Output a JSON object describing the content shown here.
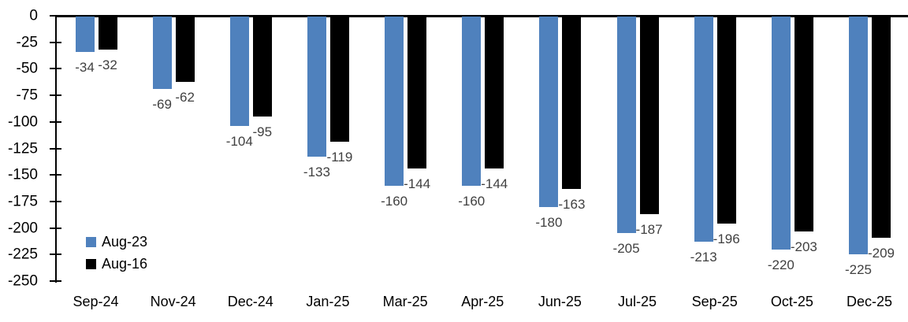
{
  "chart_data": {
    "type": "bar",
    "title": "",
    "xlabel": "",
    "ylabel": "",
    "categories": [
      "Sep-24",
      "Nov-24",
      "Dec-24",
      "Jan-25",
      "Mar-25",
      "Apr-25",
      "Jun-25",
      "Jul-25",
      "Sep-25",
      "Oct-25",
      "Dec-25"
    ],
    "series": [
      {
        "name": "Aug-23",
        "color": "#4F81BD",
        "values": [
          -34,
          -69,
          -104,
          -133,
          -160,
          -160,
          -180,
          -205,
          -213,
          -220,
          -225
        ]
      },
      {
        "name": "Aug-16",
        "color": "#000000",
        "values": [
          -32,
          -62,
          -95,
          -119,
          -144,
          -144,
          -163,
          -187,
          -196,
          -203,
          -209
        ]
      }
    ],
    "ylim": [
      -250,
      0
    ],
    "y_ticks": [
      0,
      -25,
      -50,
      -75,
      -100,
      -125,
      -150,
      -175,
      -200,
      -225,
      -250
    ],
    "grid": false,
    "data_labels": true,
    "data_label_color": "#404040",
    "legend_position": "inside-bottom-left",
    "axis_color": "#000000",
    "background_color": "#ffffff"
  }
}
